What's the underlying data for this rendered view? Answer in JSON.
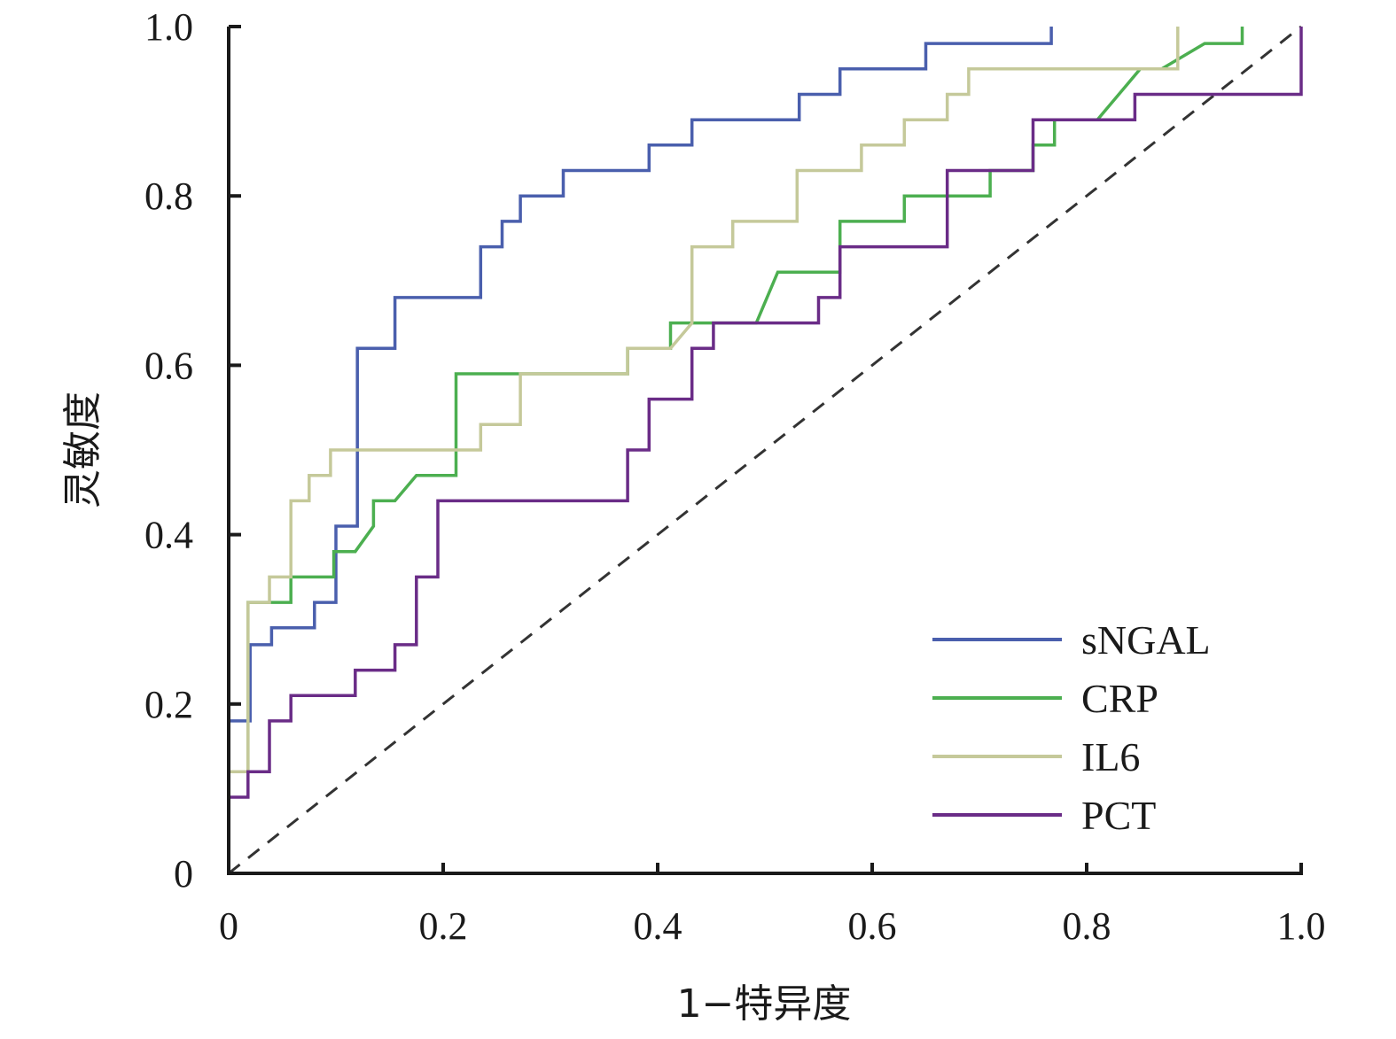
{
  "chart_data": {
    "type": "line",
    "title": "",
    "xlabel": "1−特异度",
    "ylabel": "灵敏度",
    "xlim": [
      0,
      1.0
    ],
    "ylim": [
      0,
      1.0
    ],
    "x_ticks": [
      "0",
      "0.2",
      "0.4",
      "0.6",
      "0.8",
      "1.0"
    ],
    "y_ticks": [
      "0",
      "0.2",
      "0.4",
      "0.6",
      "0.8",
      "1.0"
    ],
    "grid": false,
    "legend_position": "bottom-right",
    "reference_line": {
      "style": "dashed",
      "from": [
        0,
        0
      ],
      "to": [
        1,
        1
      ],
      "color": "#333333"
    },
    "series": [
      {
        "name": "sNGAL",
        "color": "#4a5fad",
        "points": [
          [
            0,
            0.18
          ],
          [
            0.02,
            0.18
          ],
          [
            0.02,
            0.27
          ],
          [
            0.04,
            0.27
          ],
          [
            0.04,
            0.29
          ],
          [
            0.08,
            0.29
          ],
          [
            0.08,
            0.32
          ],
          [
            0.1,
            0.32
          ],
          [
            0.1,
            0.41
          ],
          [
            0.12,
            0.41
          ],
          [
            0.12,
            0.62
          ],
          [
            0.155,
            0.62
          ],
          [
            0.155,
            0.68
          ],
          [
            0.235,
            0.68
          ],
          [
            0.235,
            0.74
          ],
          [
            0.255,
            0.74
          ],
          [
            0.255,
            0.77
          ],
          [
            0.272,
            0.77
          ],
          [
            0.272,
            0.8
          ],
          [
            0.312,
            0.8
          ],
          [
            0.312,
            0.83
          ],
          [
            0.392,
            0.83
          ],
          [
            0.392,
            0.86
          ],
          [
            0.432,
            0.86
          ],
          [
            0.432,
            0.89
          ],
          [
            0.532,
            0.89
          ],
          [
            0.532,
            0.92
          ],
          [
            0.57,
            0.92
          ],
          [
            0.57,
            0.95
          ],
          [
            0.65,
            0.95
          ],
          [
            0.65,
            0.98
          ],
          [
            0.767,
            0.98
          ],
          [
            0.767,
            1.0
          ]
        ]
      },
      {
        "name": "CRP",
        "color": "#4caf50",
        "points": [
          [
            0,
            0.12
          ],
          [
            0.018,
            0.12
          ],
          [
            0.018,
            0.32
          ],
          [
            0.058,
            0.32
          ],
          [
            0.058,
            0.35
          ],
          [
            0.098,
            0.35
          ],
          [
            0.098,
            0.38
          ],
          [
            0.118,
            0.38
          ],
          [
            0.135,
            0.41
          ],
          [
            0.135,
            0.44
          ],
          [
            0.155,
            0.44
          ],
          [
            0.175,
            0.47
          ],
          [
            0.212,
            0.47
          ],
          [
            0.212,
            0.59
          ],
          [
            0.372,
            0.59
          ],
          [
            0.372,
            0.62
          ],
          [
            0.412,
            0.62
          ],
          [
            0.412,
            0.65
          ],
          [
            0.492,
            0.65
          ],
          [
            0.512,
            0.71
          ],
          [
            0.57,
            0.71
          ],
          [
            0.57,
            0.77
          ],
          [
            0.63,
            0.77
          ],
          [
            0.63,
            0.8
          ],
          [
            0.71,
            0.8
          ],
          [
            0.71,
            0.83
          ],
          [
            0.75,
            0.83
          ],
          [
            0.75,
            0.86
          ],
          [
            0.77,
            0.86
          ],
          [
            0.77,
            0.89
          ],
          [
            0.81,
            0.89
          ],
          [
            0.85,
            0.95
          ],
          [
            0.87,
            0.95
          ],
          [
            0.91,
            0.98
          ],
          [
            0.945,
            0.98
          ],
          [
            0.945,
            1.0
          ]
        ]
      },
      {
        "name": "IL6",
        "color": "#c5c99a",
        "points": [
          [
            0,
            0.12
          ],
          [
            0.018,
            0.12
          ],
          [
            0.018,
            0.32
          ],
          [
            0.038,
            0.32
          ],
          [
            0.038,
            0.35
          ],
          [
            0.058,
            0.35
          ],
          [
            0.058,
            0.44
          ],
          [
            0.075,
            0.44
          ],
          [
            0.075,
            0.47
          ],
          [
            0.095,
            0.47
          ],
          [
            0.095,
            0.5
          ],
          [
            0.235,
            0.5
          ],
          [
            0.235,
            0.53
          ],
          [
            0.272,
            0.53
          ],
          [
            0.272,
            0.59
          ],
          [
            0.372,
            0.59
          ],
          [
            0.372,
            0.62
          ],
          [
            0.412,
            0.62
          ],
          [
            0.432,
            0.65
          ],
          [
            0.432,
            0.74
          ],
          [
            0.47,
            0.74
          ],
          [
            0.47,
            0.77
          ],
          [
            0.53,
            0.77
          ],
          [
            0.53,
            0.83
          ],
          [
            0.59,
            0.83
          ],
          [
            0.59,
            0.86
          ],
          [
            0.63,
            0.86
          ],
          [
            0.63,
            0.89
          ],
          [
            0.67,
            0.89
          ],
          [
            0.67,
            0.92
          ],
          [
            0.69,
            0.92
          ],
          [
            0.69,
            0.95
          ],
          [
            0.885,
            0.95
          ],
          [
            0.885,
            1.0
          ]
        ]
      },
      {
        "name": "PCT",
        "color": "#6a2c87",
        "points": [
          [
            0,
            0.09
          ],
          [
            0.018,
            0.09
          ],
          [
            0.018,
            0.12
          ],
          [
            0.038,
            0.12
          ],
          [
            0.038,
            0.18
          ],
          [
            0.058,
            0.18
          ],
          [
            0.058,
            0.21
          ],
          [
            0.118,
            0.21
          ],
          [
            0.118,
            0.24
          ],
          [
            0.155,
            0.24
          ],
          [
            0.155,
            0.27
          ],
          [
            0.175,
            0.27
          ],
          [
            0.175,
            0.35
          ],
          [
            0.195,
            0.35
          ],
          [
            0.195,
            0.44
          ],
          [
            0.372,
            0.44
          ],
          [
            0.372,
            0.5
          ],
          [
            0.392,
            0.5
          ],
          [
            0.392,
            0.56
          ],
          [
            0.432,
            0.56
          ],
          [
            0.432,
            0.62
          ],
          [
            0.452,
            0.62
          ],
          [
            0.452,
            0.65
          ],
          [
            0.55,
            0.65
          ],
          [
            0.55,
            0.68
          ],
          [
            0.57,
            0.68
          ],
          [
            0.57,
            0.74
          ],
          [
            0.67,
            0.74
          ],
          [
            0.67,
            0.83
          ],
          [
            0.75,
            0.83
          ],
          [
            0.75,
            0.89
          ],
          [
            0.845,
            0.89
          ],
          [
            0.845,
            0.92
          ],
          [
            1.0,
            0.92
          ],
          [
            1.0,
            1.0
          ]
        ]
      }
    ]
  }
}
